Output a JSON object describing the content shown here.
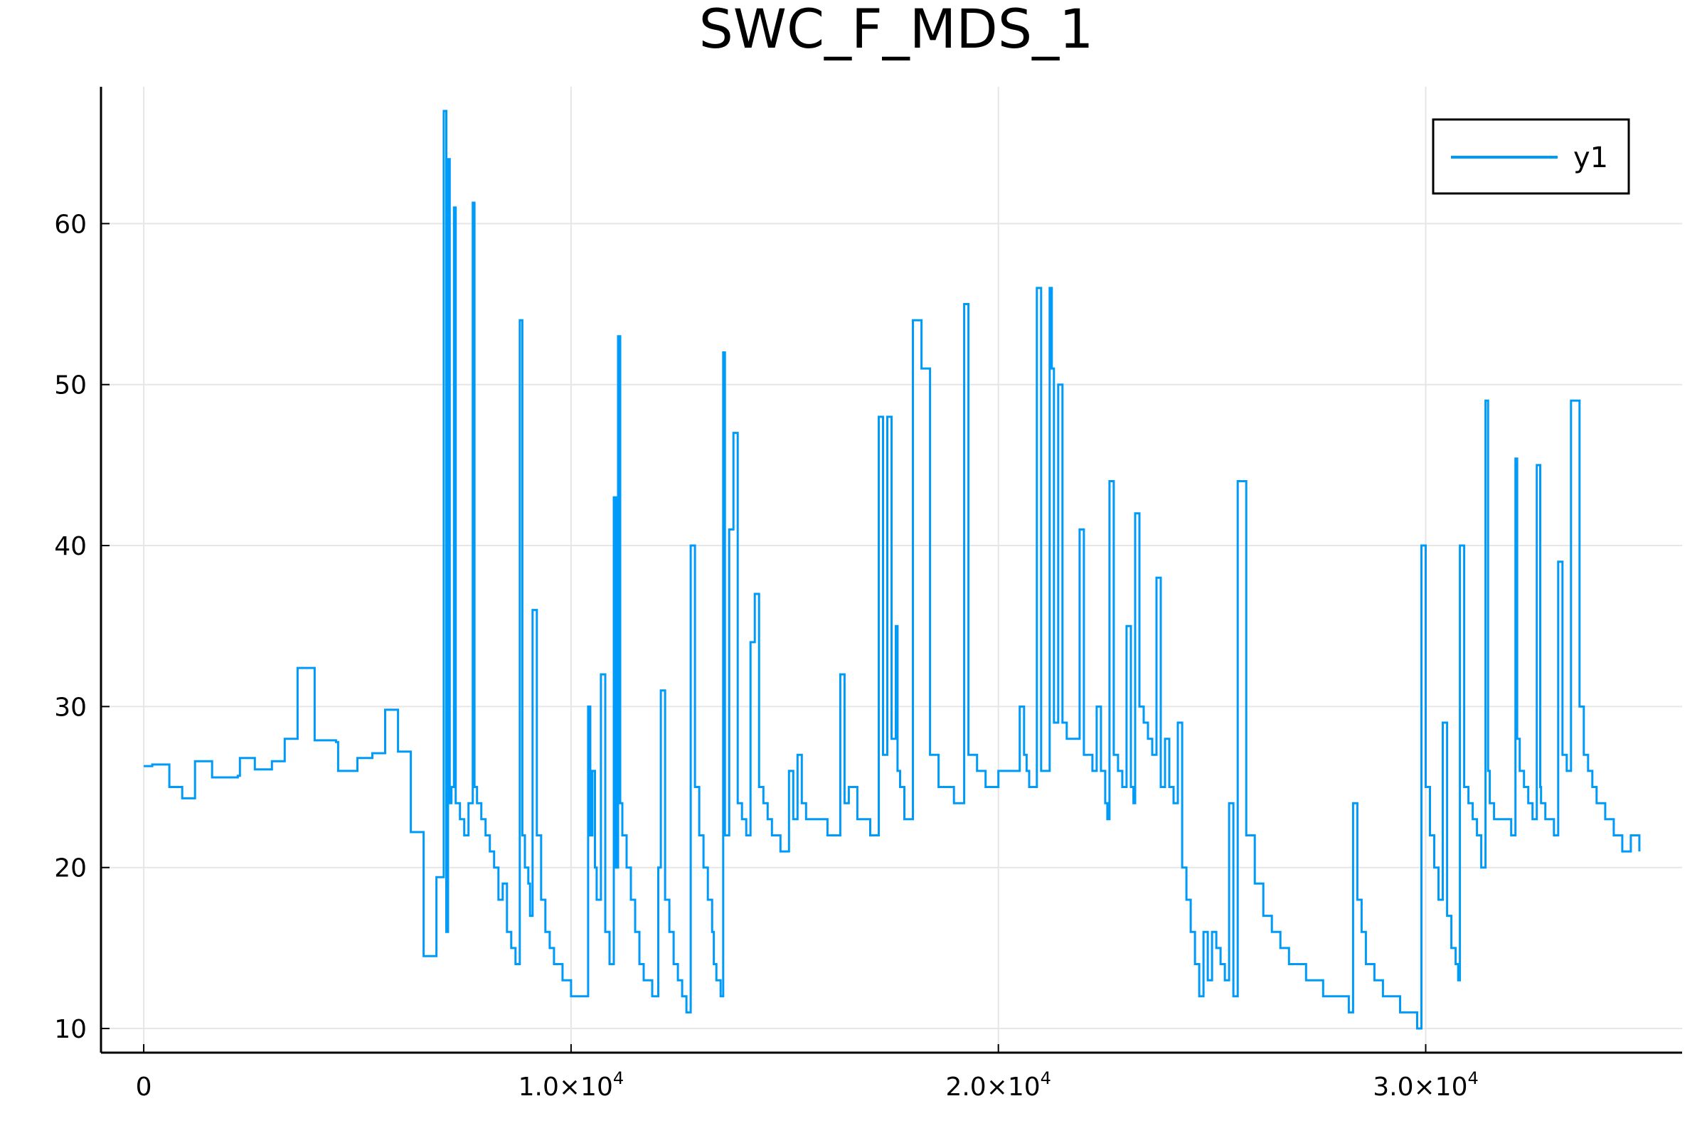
{
  "colors": {
    "series": "#009af9",
    "axis": "#000000",
    "grid": "#e6e6e6"
  },
  "chart_data": {
    "type": "line",
    "title": "SWC_F_MDS_1",
    "xlabel": "",
    "ylabel": "",
    "xlim": [
      -1000,
      36000
    ],
    "ylim": [
      8.5,
      68.5
    ],
    "grid": true,
    "legend_position": "top-right",
    "x_ticks": [
      {
        "value": 0,
        "label": "0"
      },
      {
        "value": 10000,
        "label": "1.0×10",
        "exp": "4"
      },
      {
        "value": 20000,
        "label": "2.0×10",
        "exp": "4"
      },
      {
        "value": 30000,
        "label": "3.0×10",
        "exp": "4"
      }
    ],
    "y_ticks": [
      {
        "value": 10,
        "label": "10"
      },
      {
        "value": 20,
        "label": "20"
      },
      {
        "value": 30,
        "label": "30"
      },
      {
        "value": 40,
        "label": "40"
      },
      {
        "value": 50,
        "label": "50"
      },
      {
        "value": 60,
        "label": "60"
      }
    ],
    "series": [
      {
        "name": "y1",
        "x": [
          0,
          200,
          250,
          600,
          650,
          900,
          950,
          1200,
          1300,
          1600,
          1650,
          2200,
          2250,
          2300,
          2600,
          2650,
          3000,
          3050,
          3300,
          3350,
          3600,
          3650,
          4000,
          4050,
          4500,
          4550,
          4950,
          5000,
          5300,
          5350,
          5600,
          5650,
          5900,
          5950,
          6200,
          6250,
          6500,
          6550,
          6800,
          6850,
          7000,
          7020,
          7080,
          7120,
          7160,
          7200,
          7260,
          7300,
          7400,
          7500,
          7600,
          7700,
          7740,
          7800,
          7900,
          8000,
          8100,
          8200,
          8300,
          8400,
          8500,
          8600,
          8700,
          8800,
          8860,
          8920,
          9000,
          9040,
          9100,
          9200,
          9300,
          9400,
          9500,
          9600,
          9700,
          9800,
          9900,
          10000,
          10100,
          10300,
          10400,
          10450,
          10500,
          10560,
          10600,
          10700,
          10800,
          10900,
          11000,
          11050,
          11100,
          11150,
          11200,
          11300,
          11400,
          11500,
          11600,
          11700,
          11800,
          11900,
          12000,
          12040,
          12100,
          12200,
          12300,
          12400,
          12500,
          12600,
          12700,
          12750,
          12800,
          12900,
          13000,
          13100,
          13200,
          13300,
          13340,
          13400,
          13500,
          13560,
          13600,
          13700,
          13800,
          13900,
          14000,
          14100,
          14200,
          14300,
          14400,
          14500,
          14600,
          14700,
          14800,
          14900,
          15000,
          15100,
          15200,
          15300,
          15400,
          15500,
          15600,
          15800,
          16000,
          16100,
          16200,
          16300,
          16400,
          16500,
          16700,
          16900,
          17000,
          17100,
          17200,
          17300,
          17400,
          17500,
          17600,
          17640,
          17700,
          17800,
          18000,
          18200,
          18400,
          18600,
          18800,
          18900,
          18960,
          19000,
          19100,
          19200,
          19300,
          19500,
          19700,
          19900,
          20000,
          20200,
          20400,
          20500,
          20600,
          20660,
          20720,
          20800,
          20900,
          21000,
          21060,
          21100,
          21200,
          21250,
          21300,
          21400,
          21500,
          21600,
          21700,
          21800,
          21900,
          22000,
          22100,
          22200,
          22300,
          22400,
          22500,
          22550,
          22600,
          22700,
          22800,
          22900,
          23000,
          23100,
          23160,
          23200,
          23300,
          23400,
          23500,
          23600,
          23700,
          23800,
          23900,
          24000,
          24100,
          24200,
          24300,
          24400,
          24500,
          24600,
          24700,
          24800,
          24900,
          25000,
          25100,
          25200,
          25300,
          25400,
          25500,
          25600,
          25800,
          26000,
          26200,
          26400,
          26600,
          26800,
          27000,
          27200,
          27400,
          27600,
          27800,
          28000,
          28200,
          28260,
          28300,
          28400,
          28500,
          28600,
          28800,
          29000,
          29200,
          29400,
          29600,
          29760,
          29800,
          29900,
          30000,
          30100,
          30200,
          30300,
          30400,
          30500,
          30600,
          30700,
          30760,
          30800,
          30900,
          31000,
          31100,
          31200,
          31300,
          31400,
          31460,
          31500,
          31600,
          31800,
          32000,
          32100,
          32140,
          32200,
          32300,
          32400,
          32500,
          32600,
          32680,
          32700,
          32800,
          32900,
          33000,
          33100,
          33200,
          33300,
          33400,
          33600,
          33700,
          33800,
          33900,
          34000,
          34200,
          34400,
          34600,
          34800,
          35000
        ],
        "y": [
          26.3,
          26.4,
          26.4,
          25,
          25,
          24.3,
          24.3,
          26.6,
          26.6,
          25.6,
          25.6,
          25.7,
          26.8,
          26.8,
          26.1,
          26.1,
          26.6,
          26.6,
          28,
          28,
          32.4,
          32.4,
          27.9,
          27.9,
          27.8,
          26,
          26,
          26.8,
          26.8,
          27.1,
          27.1,
          29.8,
          29.8,
          27.2,
          27.2,
          22.2,
          22.2,
          14.5,
          14.5,
          19.4,
          19.4,
          67,
          16,
          64,
          24,
          25,
          61,
          24,
          23,
          22,
          24,
          61.3,
          25,
          24,
          23,
          22,
          21,
          20,
          18,
          19,
          16,
          15,
          14,
          54,
          22,
          20,
          19,
          17,
          36,
          22,
          18,
          16,
          15,
          14,
          14,
          13,
          13,
          12,
          12,
          12,
          30,
          22,
          26,
          20,
          18,
          32,
          16,
          14,
          43,
          20,
          53,
          24,
          22,
          20,
          18,
          16,
          14,
          13,
          13,
          12,
          12,
          20,
          31,
          18,
          16,
          14,
          13,
          12,
          11,
          11,
          40,
          25,
          22,
          20,
          18,
          16,
          14,
          13,
          12,
          52,
          22,
          41,
          47,
          24,
          23,
          22,
          34,
          37,
          25,
          24,
          23,
          22,
          22,
          21,
          21,
          26,
          23,
          27,
          24,
          23,
          23,
          23,
          22,
          22,
          22,
          32,
          24,
          25,
          23,
          23,
          22,
          22,
          48,
          27,
          48,
          28,
          35,
          26,
          25,
          23,
          54,
          51,
          27,
          25,
          25,
          25,
          24,
          24,
          24,
          55,
          27,
          26,
          25,
          25,
          26,
          26,
          26,
          30,
          27,
          26,
          25,
          25,
          56,
          26,
          26,
          26,
          56,
          51,
          29,
          50,
          29,
          28,
          28,
          28,
          41,
          27,
          27,
          26,
          30,
          26,
          24,
          23,
          44,
          27,
          26,
          25,
          35,
          25,
          24,
          42,
          30,
          29,
          28,
          27,
          38,
          25,
          28,
          25,
          24,
          29,
          20,
          18,
          16,
          14,
          12,
          16,
          13,
          16,
          15,
          14,
          13,
          24,
          12,
          44,
          22,
          19,
          17,
          16,
          15,
          14,
          14,
          13,
          13,
          12,
          12,
          12,
          11,
          11,
          24,
          18,
          16,
          14,
          13,
          12,
          12,
          11,
          11,
          11,
          10,
          40,
          25,
          22,
          20,
          18,
          29,
          17,
          15,
          14,
          13,
          40,
          25,
          24,
          23,
          22,
          20,
          49,
          26,
          24,
          23,
          23,
          22,
          45.4,
          28,
          26,
          25,
          24,
          23,
          45,
          25,
          24,
          23,
          23,
          22,
          39,
          27,
          26,
          49,
          30,
          27,
          26,
          25,
          24,
          23,
          22,
          21,
          22,
          21
        ]
      }
    ]
  }
}
